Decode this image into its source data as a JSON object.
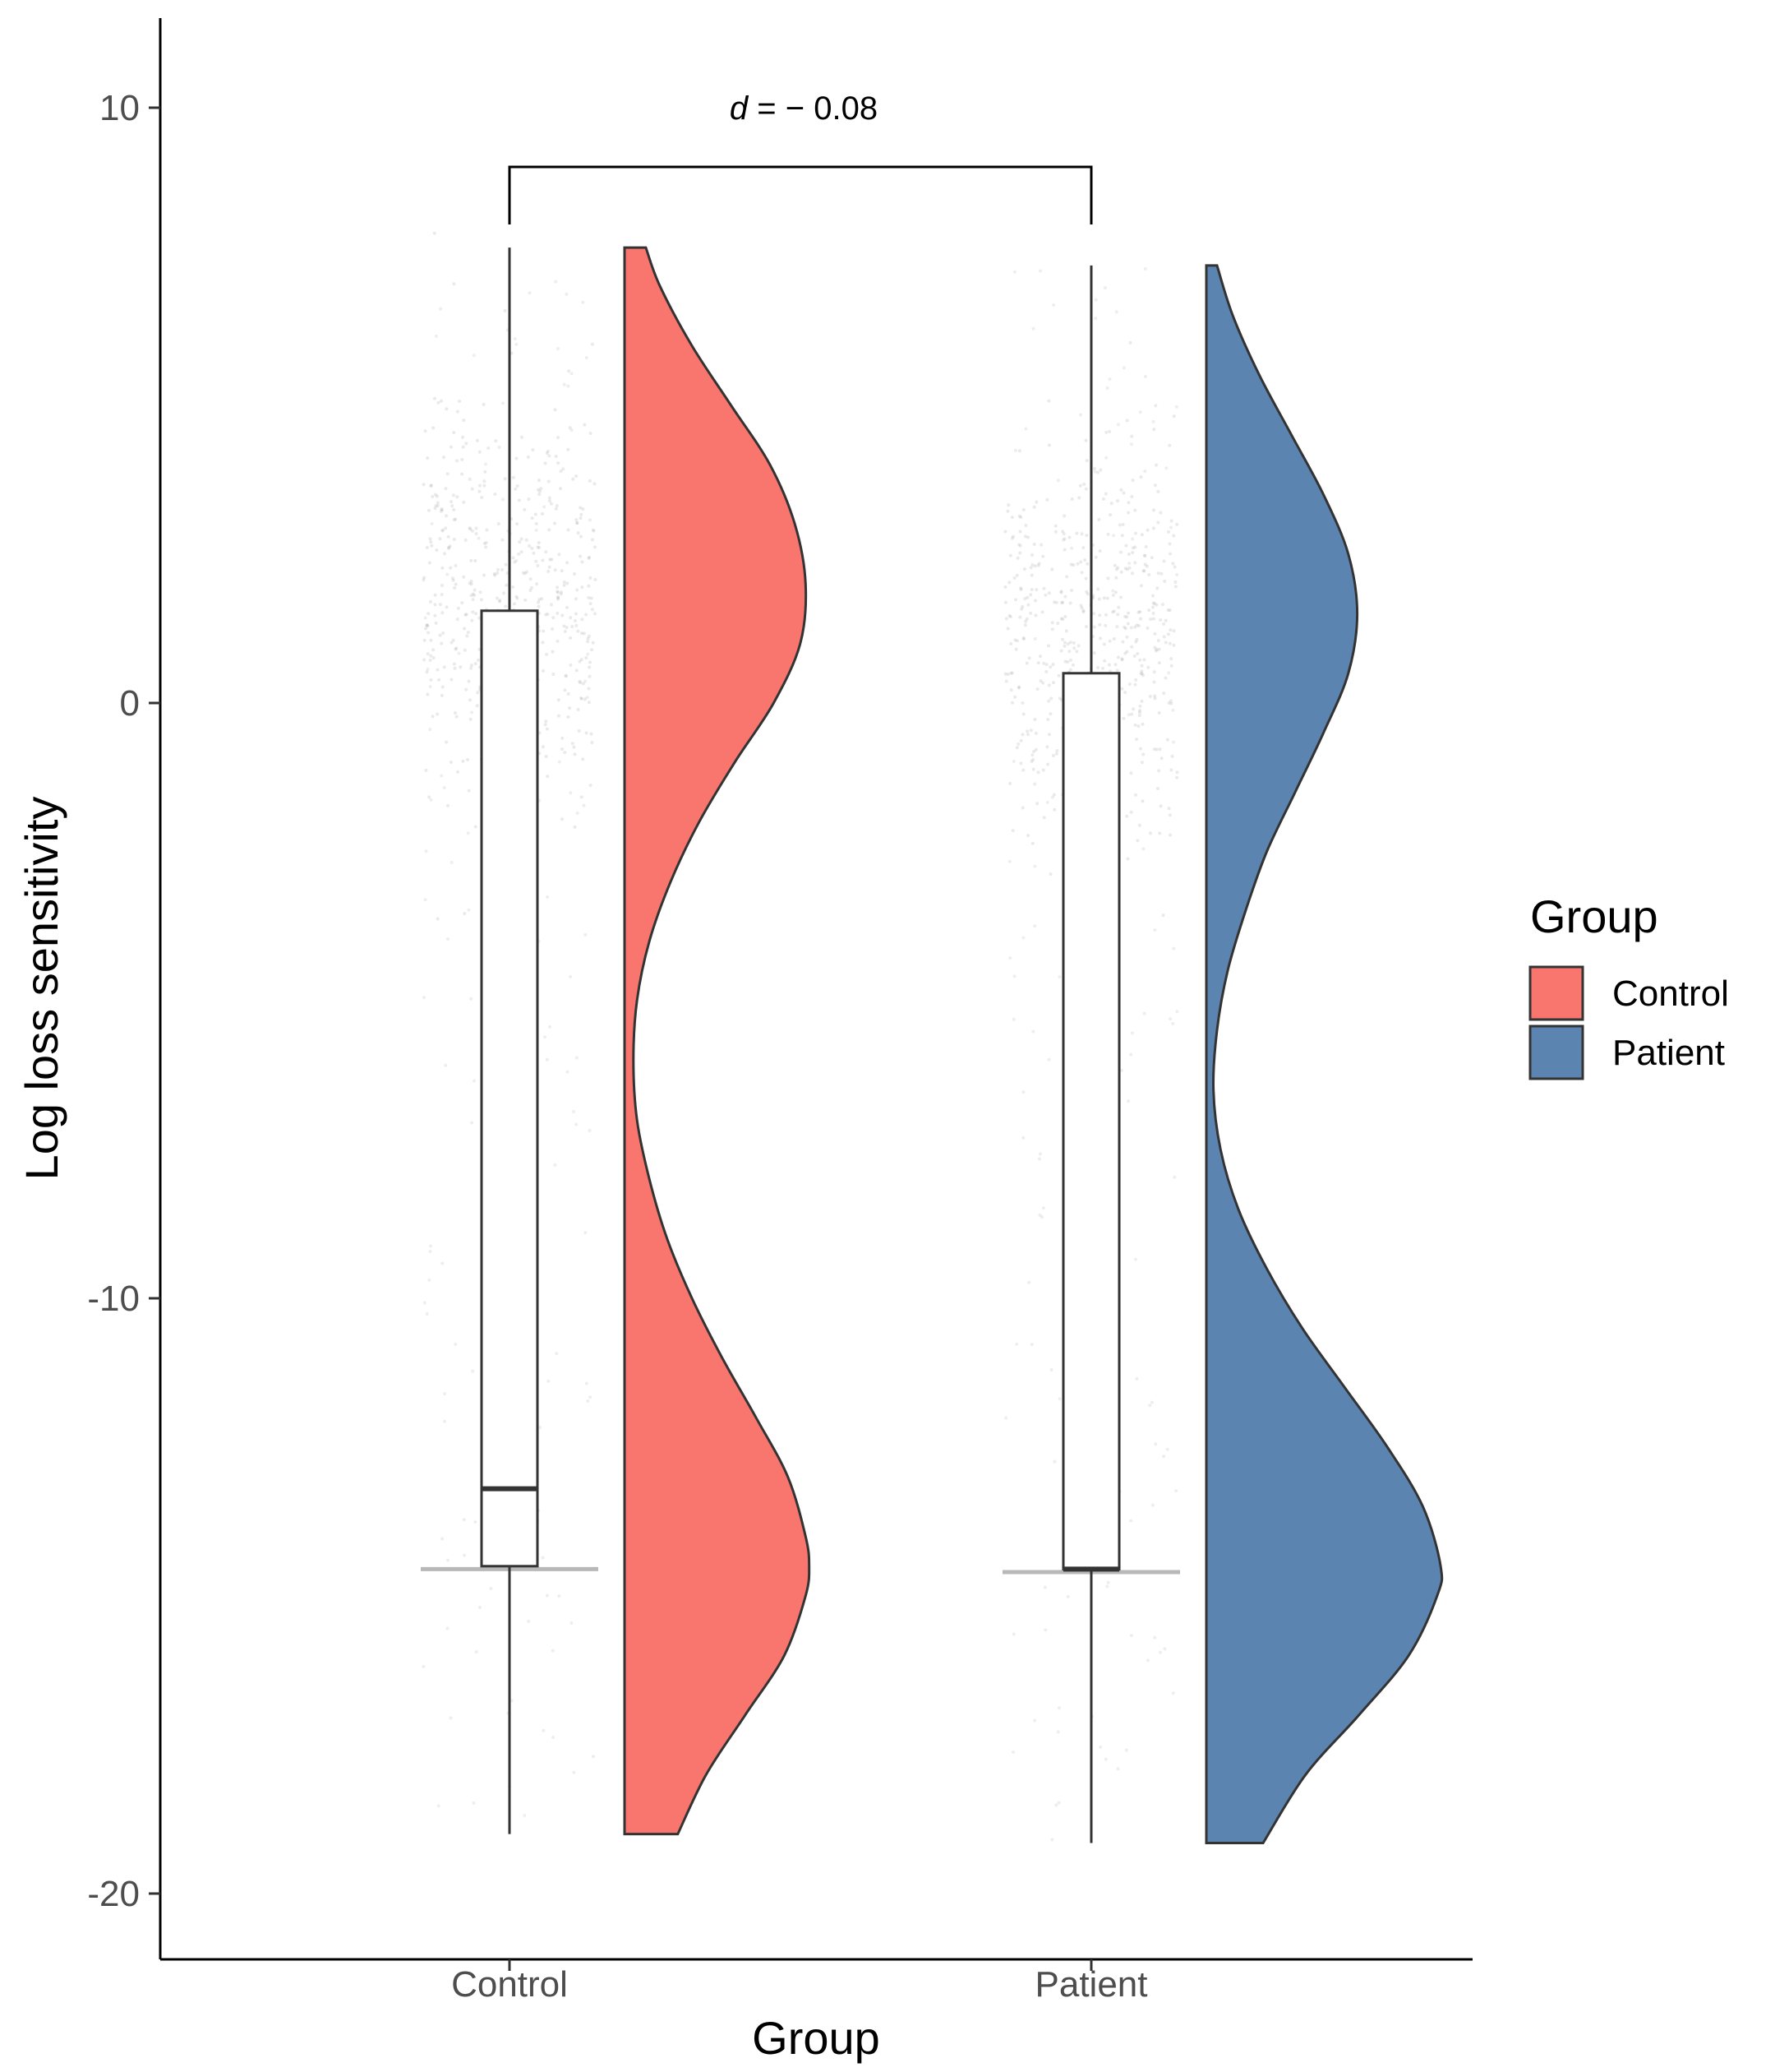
{
  "chart_data": {
    "type": "raincloud",
    "title": "",
    "xlabel": "Group",
    "ylabel": "Log loss sensitivity",
    "ylim": [
      -21,
      11.5
    ],
    "yticks": [
      10,
      0,
      -10,
      -20
    ],
    "categories": [
      "Control",
      "Patient"
    ],
    "legend": {
      "title": "Group",
      "position": "right",
      "entries": [
        {
          "label": "Control",
          "color": "#F8766D"
        },
        {
          "label": "Patient",
          "color": "#5B84B1"
        }
      ]
    },
    "series": [
      {
        "name": "Control",
        "color": "#F8766D",
        "box": {
          "min": -19.0,
          "q1": -14.5,
          "median": -13.2,
          "q3": 1.55,
          "max": 7.65
        },
        "density": [
          [
            7.65,
            0.12
          ],
          [
            7.0,
            0.2
          ],
          [
            6.0,
            0.38
          ],
          [
            5.0,
            0.6
          ],
          [
            4.0,
            0.82
          ],
          [
            3.0,
            0.96
          ],
          [
            2.0,
            1.02
          ],
          [
            1.0,
            0.99
          ],
          [
            0.0,
            0.84
          ],
          [
            -1.0,
            0.62
          ],
          [
            -2.0,
            0.42
          ],
          [
            -3.0,
            0.26
          ],
          [
            -4.0,
            0.14
          ],
          [
            -5.0,
            0.07
          ],
          [
            -6.0,
            0.05
          ],
          [
            -7.0,
            0.07
          ],
          [
            -8.0,
            0.14
          ],
          [
            -9.0,
            0.24
          ],
          [
            -10.0,
            0.38
          ],
          [
            -11.0,
            0.55
          ],
          [
            -12.0,
            0.74
          ],
          [
            -13.0,
            0.92
          ],
          [
            -14.0,
            1.02
          ],
          [
            -14.5,
            1.04
          ],
          [
            -15.0,
            1.02
          ],
          [
            -16.0,
            0.9
          ],
          [
            -17.0,
            0.68
          ],
          [
            -18.0,
            0.46
          ],
          [
            -19.0,
            0.3
          ]
        ],
        "jitter_cluster_center": 1.8,
        "jitter_floor": -14.55
      },
      {
        "name": "Patient",
        "color": "#5B84B1",
        "box": {
          "min": -19.15,
          "q1": -14.55,
          "median": -14.55,
          "q3": 0.5,
          "max": 7.35
        },
        "density": [
          [
            7.35,
            0.06
          ],
          [
            6.5,
            0.15
          ],
          [
            5.5,
            0.3
          ],
          [
            4.5,
            0.48
          ],
          [
            3.5,
            0.66
          ],
          [
            2.5,
            0.8
          ],
          [
            1.5,
            0.85
          ],
          [
            0.5,
            0.8
          ],
          [
            -0.5,
            0.66
          ],
          [
            -1.5,
            0.5
          ],
          [
            -2.5,
            0.34
          ],
          [
            -3.5,
            0.22
          ],
          [
            -4.5,
            0.12
          ],
          [
            -5.5,
            0.06
          ],
          [
            -6.5,
            0.04
          ],
          [
            -7.5,
            0.08
          ],
          [
            -8.5,
            0.18
          ],
          [
            -9.5,
            0.34
          ],
          [
            -10.5,
            0.54
          ],
          [
            -11.5,
            0.78
          ],
          [
            -12.5,
            1.02
          ],
          [
            -13.5,
            1.22
          ],
          [
            -14.5,
            1.32
          ],
          [
            -15.0,
            1.3
          ],
          [
            -16.0,
            1.14
          ],
          [
            -17.0,
            0.86
          ],
          [
            -18.0,
            0.56
          ],
          [
            -19.15,
            0.32
          ]
        ],
        "jitter_cluster_center": 1.0,
        "jitter_floor": -14.6
      }
    ],
    "annotations": [
      {
        "text_italic": "d",
        "text_rest": " = − 0.08",
        "between": [
          "Control",
          "Patient"
        ]
      }
    ]
  }
}
